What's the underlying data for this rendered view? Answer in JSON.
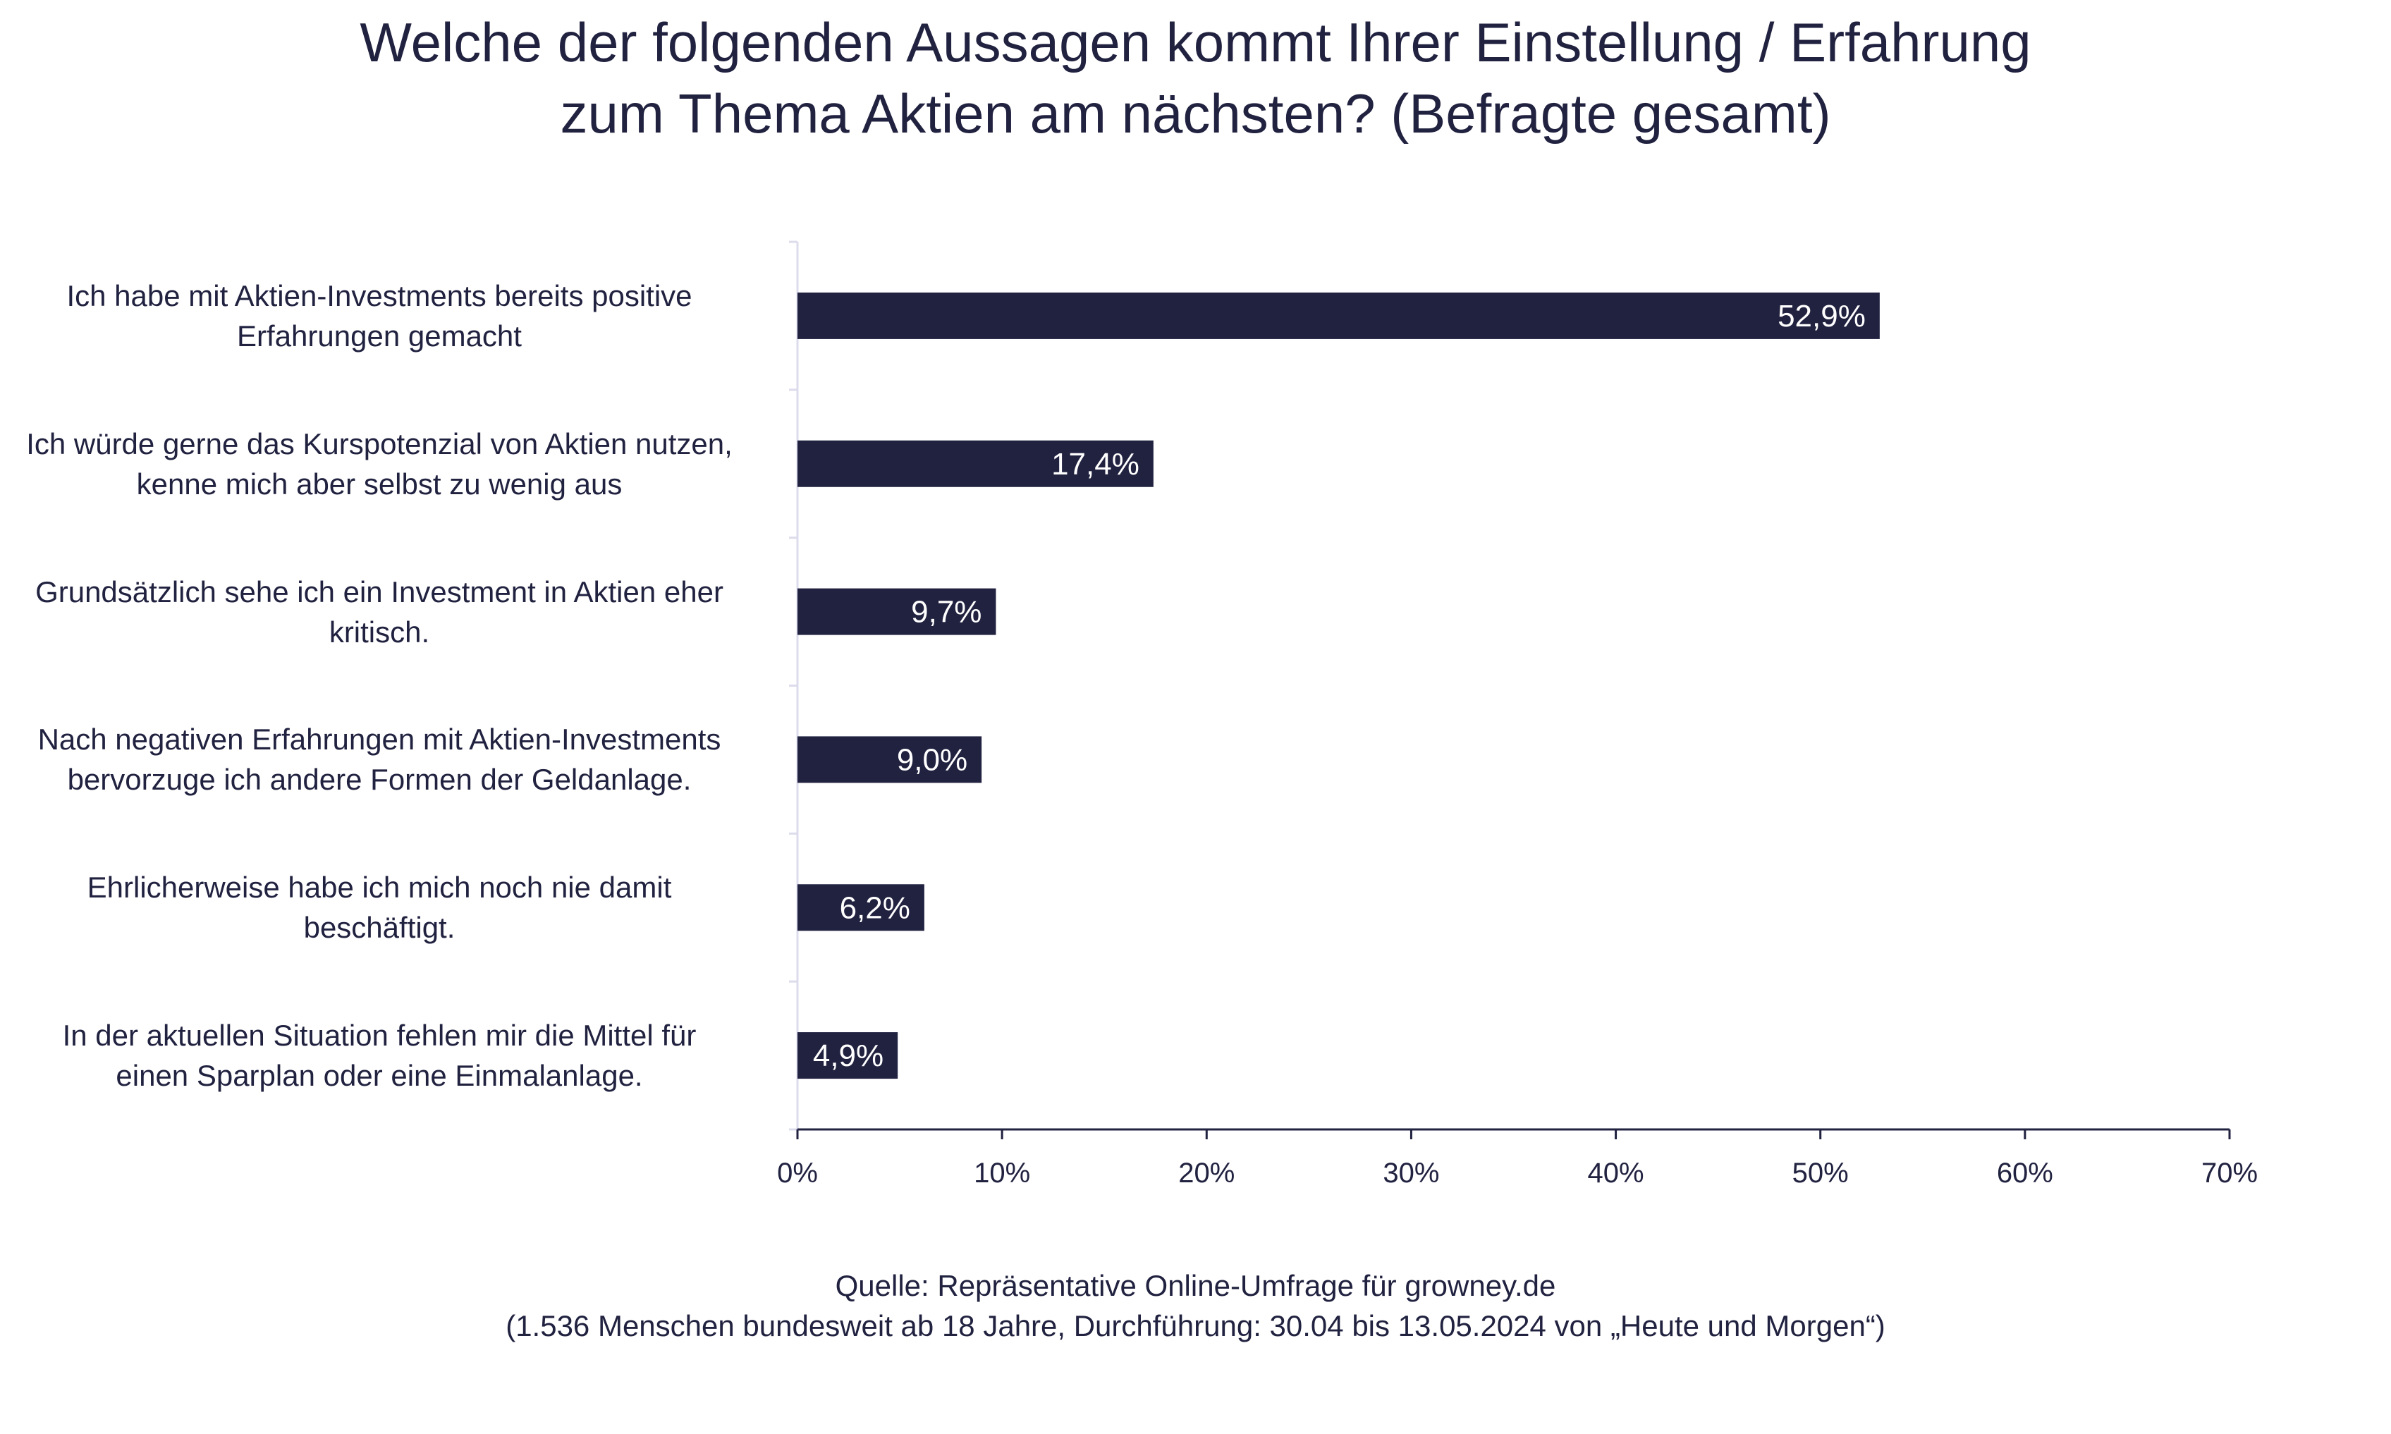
{
  "title_lines": [
    "Welche der folgenden Aussagen kommt Ihrer Einstellung / Erfahrung",
    "zum Thema Aktien am nächsten? (Befragte gesamt)"
  ],
  "chart_data": {
    "type": "bar",
    "orientation": "horizontal",
    "title": "Welche der folgenden Aussagen kommt Ihrer Einstellung / Erfahrung zum Thema Aktien am nächsten? (Befragte gesamt)",
    "categories": [
      [
        "Ich habe mit Aktien-Investments bereits positive",
        "Erfahrungen gemacht"
      ],
      [
        "Ich würde gerne das Kurspotenzial von Aktien nutzen,",
        "kenne mich aber selbst zu wenig aus"
      ],
      [
        "Grundsätzlich sehe ich ein Investment in Aktien eher",
        "kritisch."
      ],
      [
        "Nach negativen Erfahrungen mit Aktien-Investments",
        "bervorzuge ich andere Formen der Geldanlage."
      ],
      [
        "Ehrlicherweise habe ich mich noch nie damit",
        "beschäftigt."
      ],
      [
        "In der aktuellen Situation fehlen mir die Mittel für",
        "einen Sparplan oder eine Einmalanlage."
      ]
    ],
    "values": [
      52.9,
      17.4,
      9.7,
      9.0,
      6.2,
      4.9
    ],
    "data_labels": [
      "52,9%",
      "17,4%",
      "9,7%",
      "9,0%",
      "6,2%",
      "4,9%"
    ],
    "xlim": [
      0,
      70
    ],
    "x_ticks": [
      0,
      10,
      20,
      30,
      40,
      50,
      60,
      70
    ],
    "x_tick_labels": [
      "0%",
      "10%",
      "20%",
      "30%",
      "40%",
      "50%",
      "60%",
      "70%"
    ],
    "xlabel": "",
    "ylabel": "",
    "grid": false,
    "legend": "none",
    "bar_color": "#212240",
    "label_color": "#ffffff"
  },
  "source_lines": [
    "Quelle: Repräsentative Online-Umfrage für growney.de",
    "(1.536 Menschen bundesweit ab 18 Jahre, Durchführung: 30.04 bis 13.05.2024 von „Heute und Morgen“)"
  ]
}
